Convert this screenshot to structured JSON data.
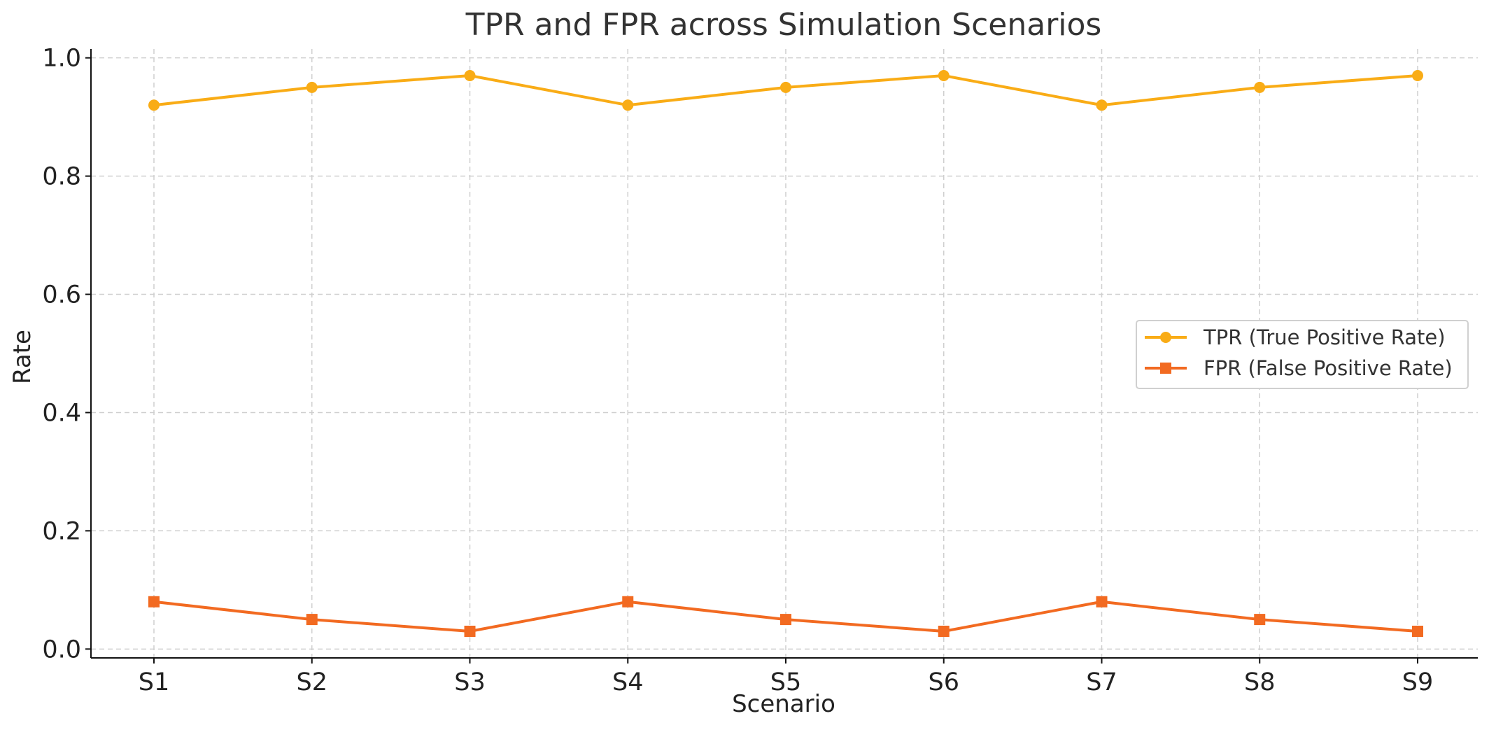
{
  "chart_data": {
    "type": "line",
    "title": "TPR and FPR across Simulation Scenarios",
    "xlabel": "Scenario",
    "ylabel": "Rate",
    "categories": [
      "S1",
      "S2",
      "S3",
      "S4",
      "S5",
      "S6",
      "S7",
      "S8",
      "S9"
    ],
    "y_ticks": [
      0.0,
      0.2,
      0.4,
      0.6,
      0.8,
      1.0
    ],
    "y_tick_labels": [
      "0.0",
      "0.2",
      "0.4",
      "0.6",
      "0.8",
      "1.0"
    ],
    "ylim": [
      -0.015,
      1.015
    ],
    "grid": true,
    "legend_position": "center-right",
    "series": [
      {
        "name": "TPR (True Positive Rate)",
        "values": [
          0.92,
          0.95,
          0.97,
          0.92,
          0.95,
          0.97,
          0.92,
          0.95,
          0.97
        ],
        "color": "#F9AC16",
        "marker": "circle"
      },
      {
        "name": "FPR (False Positive Rate)",
        "values": [
          0.08,
          0.05,
          0.03,
          0.08,
          0.05,
          0.03,
          0.08,
          0.05,
          0.03
        ],
        "color": "#F26A21",
        "marker": "square"
      }
    ]
  }
}
